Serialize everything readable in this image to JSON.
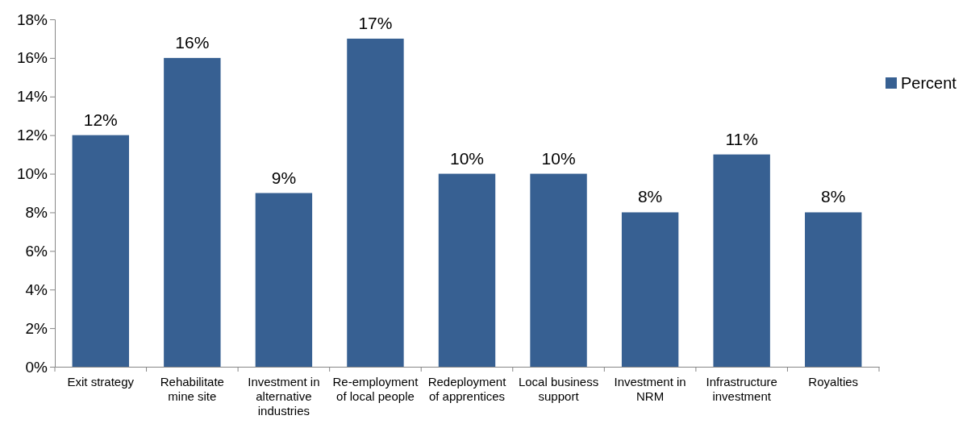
{
  "chart_data": {
    "type": "bar",
    "categories": [
      "Exit strategy",
      "Rehabilitate mine site",
      "Investment in alternative industries",
      "Re-employment of local people",
      "Redeployment of apprentices",
      "Local business support",
      "Investment in NRM",
      "Infrastructure investment",
      "Royalties"
    ],
    "series": [
      {
        "name": "Percent",
        "color": "#376092",
        "values": [
          12,
          16,
          9,
          17,
          10,
          10,
          8,
          11,
          8
        ],
        "value_labels": [
          "12%",
          "16%",
          "9%",
          "17%",
          "10%",
          "10%",
          "8%",
          "11%",
          "8%"
        ]
      }
    ],
    "ylim": [
      0,
      18
    ],
    "yticks": [
      {
        "value": 0,
        "label": "0%"
      },
      {
        "value": 2,
        "label": "2%"
      },
      {
        "value": 4,
        "label": "4%"
      },
      {
        "value": 6,
        "label": "6%"
      },
      {
        "value": 8,
        "label": "8%"
      },
      {
        "value": 10,
        "label": "10%"
      },
      {
        "value": 12,
        "label": "12%"
      },
      {
        "value": 14,
        "label": "14%"
      },
      {
        "value": 16,
        "label": "16%"
      },
      {
        "value": 18,
        "label": "18%"
      }
    ],
    "grid": false,
    "legend": "right"
  }
}
